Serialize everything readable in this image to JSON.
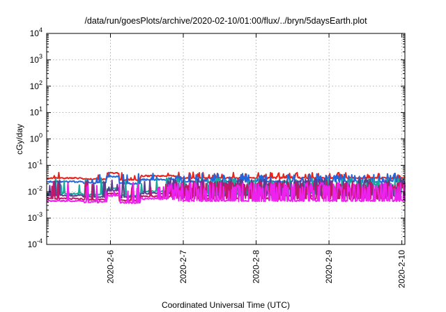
{
  "chart_data": {
    "type": "line",
    "title": "/data/run/goesPlots/archive/2020-02-10/01:00/flux/../bryn/5daysEarth.plot",
    "xlabel": "Coordinated Universal Time (UTC)",
    "ylabel": "cGy/day",
    "yscale": "log",
    "ylim": [
      0.0001,
      10000
    ],
    "xlim": [
      "2020-02-05 03:00",
      "2020-02-10 01:00"
    ],
    "x_ticks": [
      "2020-2-6",
      "2020-2-7",
      "2020-2-8",
      "2020-2-9",
      "2020-2-10"
    ],
    "y_ticks": [
      {
        "base": "10",
        "exp": "-4",
        "value": 0.0001
      },
      {
        "base": "10",
        "exp": "-3",
        "value": 0.001
      },
      {
        "base": "10",
        "exp": "-2",
        "value": 0.01
      },
      {
        "base": "10",
        "exp": "-1",
        "value": 0.1
      },
      {
        "base": "10",
        "exp": "0",
        "value": 1
      },
      {
        "base": "10",
        "exp": "1",
        "value": 10
      },
      {
        "base": "10",
        "exp": "2",
        "value": 100
      },
      {
        "base": "10",
        "exp": "3",
        "value": 1000
      },
      {
        "base": "10",
        "exp": "4",
        "value": 10000
      }
    ],
    "grid": true,
    "legend": "none",
    "series": [
      {
        "color": "#e8231c",
        "base": 0.033,
        "spike": 0.05,
        "spike_prob": 0.3
      },
      {
        "color": "#2266dd",
        "base": 0.024,
        "spike": 0.045,
        "spike_prob": 0.35
      },
      {
        "color": "#1aa89a",
        "base": 0.0085,
        "spike": 0.03,
        "spike_prob": 0.4
      },
      {
        "color": "#5a3d8c",
        "base": 0.0072,
        "spike": 0.028,
        "spike_prob": 0.4
      },
      {
        "color": "#c2186b",
        "base": 0.0055,
        "spike": 0.022,
        "spike_prob": 0.45
      },
      {
        "color": "#ee22ee",
        "base": 0.0045,
        "spike": 0.02,
        "spike_prob": 0.45
      }
    ],
    "segments": [
      {
        "from": "2020-02-05 03:00",
        "to": "2020-02-05 15:00",
        "factor": 1.0
      },
      {
        "from": "2020-02-05 15:00",
        "to": "2020-02-05 23:00",
        "factor": 0.9
      },
      {
        "from": "2020-02-05 23:00",
        "to": "2020-02-06 03:00",
        "factor": 1.55
      },
      {
        "from": "2020-02-06 03:00",
        "to": "2020-02-06 10:00",
        "factor": 0.85
      },
      {
        "from": "2020-02-06 10:00",
        "to": "2020-02-06 22:00",
        "factor": 1.2
      },
      {
        "from": "2020-02-06 22:00",
        "to": "2020-02-10 01:00",
        "factor": 1.0
      }
    ]
  }
}
